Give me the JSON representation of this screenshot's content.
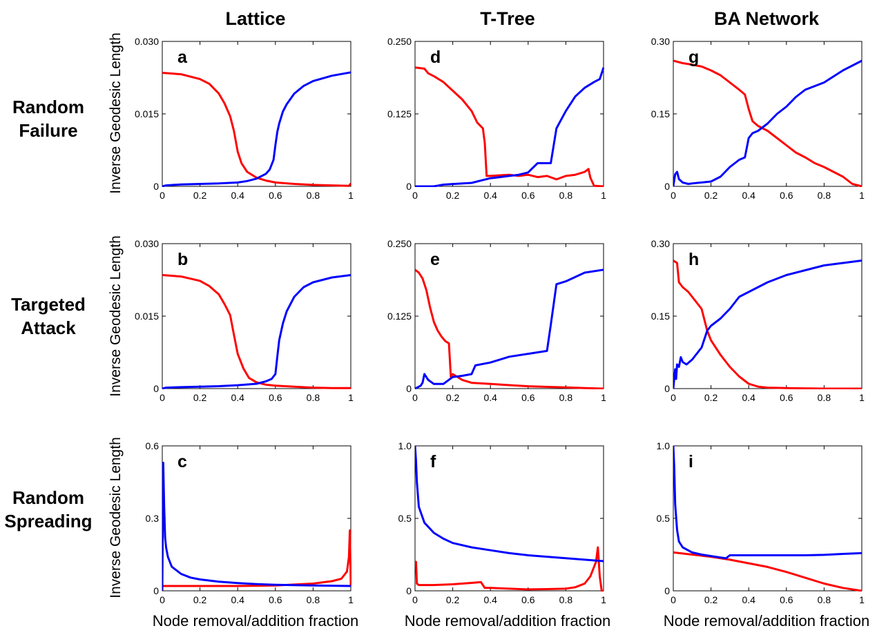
{
  "figure": {
    "column_titles": [
      "Lattice",
      "T-Tree",
      "BA Network"
    ],
    "row_titles": [
      [
        "Random",
        "Failure"
      ],
      [
        "Targeted",
        "Attack"
      ],
      [
        "Random",
        "Spreading"
      ]
    ],
    "ylabel": "Inverse Geodesic Length",
    "xlabel": "Node removal/addition fraction",
    "colors": {
      "removal": "#ff0000",
      "addition": "#0000ff",
      "axes": "#000000"
    }
  },
  "chart_data": [
    {
      "type": "line",
      "panel": "a",
      "row": 0,
      "col": 0,
      "xlim": [
        0,
        1
      ],
      "ylim": [
        0,
        0.03
      ],
      "xticks": [
        "0",
        "0.2",
        "0.4",
        "0.6",
        "0.8",
        "1"
      ],
      "yticks": [
        "0",
        "0.015",
        "0.030"
      ],
      "series": [
        {
          "color": "#ff0000",
          "x": [
            0,
            0.1,
            0.2,
            0.25,
            0.3,
            0.33,
            0.36,
            0.38,
            0.4,
            0.42,
            0.45,
            0.5,
            0.55,
            0.6,
            0.7,
            0.8,
            0.9,
            0.99,
            1
          ],
          "y": [
            0.0235,
            0.0232,
            0.0222,
            0.0212,
            0.0192,
            0.0172,
            0.0145,
            0.0115,
            0.0072,
            0.0048,
            0.003,
            0.0018,
            0.0012,
            0.0008,
            0.0005,
            0.0003,
            0.0002,
            0.0001,
            0.0006
          ]
        },
        {
          "color": "#0000ff",
          "x": [
            0,
            0.02,
            0.1,
            0.2,
            0.3,
            0.4,
            0.45,
            0.5,
            0.55,
            0.57,
            0.59,
            0.6,
            0.61,
            0.62,
            0.64,
            0.66,
            0.7,
            0.75,
            0.8,
            0.9,
            1
          ],
          "y": [
            0,
            0.0002,
            0.0004,
            0.0005,
            0.0006,
            0.0008,
            0.0011,
            0.0016,
            0.0026,
            0.0035,
            0.0055,
            0.0085,
            0.0112,
            0.013,
            0.0155,
            0.017,
            0.0192,
            0.0208,
            0.0218,
            0.0229,
            0.0236
          ]
        }
      ]
    },
    {
      "type": "line",
      "panel": "b",
      "row": 1,
      "col": 0,
      "xlim": [
        0,
        1
      ],
      "ylim": [
        0,
        0.03
      ],
      "xticks": [
        "0",
        "0.2",
        "0.4",
        "0.6",
        "0.8",
        "1"
      ],
      "yticks": [
        "0",
        "0.015",
        "0.030"
      ],
      "series": [
        {
          "color": "#ff0000",
          "x": [
            0,
            0.1,
            0.2,
            0.25,
            0.3,
            0.33,
            0.36,
            0.38,
            0.4,
            0.43,
            0.46,
            0.5,
            0.55,
            0.6,
            0.7,
            0.8,
            0.9,
            1
          ],
          "y": [
            0.0235,
            0.0232,
            0.0223,
            0.0212,
            0.0195,
            0.0175,
            0.0152,
            0.0112,
            0.0072,
            0.0042,
            0.0022,
            0.0013,
            0.0008,
            0.0006,
            0.0004,
            0.0002,
            0.0001,
            0.0001
          ]
        },
        {
          "color": "#0000ff",
          "x": [
            0,
            0.02,
            0.1,
            0.2,
            0.3,
            0.4,
            0.5,
            0.55,
            0.58,
            0.6,
            0.61,
            0.62,
            0.64,
            0.66,
            0.7,
            0.75,
            0.8,
            0.9,
            1
          ],
          "y": [
            0,
            0.0002,
            0.0003,
            0.0004,
            0.0005,
            0.0007,
            0.001,
            0.0015,
            0.002,
            0.003,
            0.0065,
            0.01,
            0.0135,
            0.016,
            0.019,
            0.021,
            0.022,
            0.023,
            0.0235
          ]
        }
      ]
    },
    {
      "type": "line",
      "panel": "c",
      "row": 2,
      "col": 0,
      "xlim": [
        0,
        1
      ],
      "ylim": [
        0,
        0.6
      ],
      "xticks": [
        "0",
        "0.2",
        "0.4",
        "0.6",
        "0.8",
        "1"
      ],
      "yticks": [
        "0",
        "0.3",
        "0.6"
      ],
      "series": [
        {
          "color": "#ff0000",
          "x": [
            0,
            0.1,
            0.2,
            0.4,
            0.6,
            0.8,
            0.9,
            0.95,
            0.98,
            0.99,
            0.995,
            1
          ],
          "y": [
            0.02,
            0.02,
            0.02,
            0.02,
            0.022,
            0.03,
            0.04,
            0.05,
            0.08,
            0.14,
            0.25,
            0.02
          ]
        },
        {
          "color": "#0000ff",
          "x": [
            0,
            0.005,
            0.01,
            0.015,
            0.02,
            0.03,
            0.05,
            0.1,
            0.15,
            0.2,
            0.3,
            0.4,
            0.5,
            0.6,
            0.8,
            1
          ],
          "y": [
            0,
            0.53,
            0.35,
            0.22,
            0.18,
            0.14,
            0.1,
            0.07,
            0.055,
            0.047,
            0.038,
            0.032,
            0.028,
            0.025,
            0.022,
            0.02
          ]
        }
      ]
    },
    {
      "type": "line",
      "panel": "d",
      "row": 0,
      "col": 1,
      "xlim": [
        0,
        1
      ],
      "ylim": [
        0,
        0.25
      ],
      "xticks": [
        "0",
        "0.2",
        "0.4",
        "0.6",
        "0.8",
        "1"
      ],
      "yticks": [
        "0",
        "0.125",
        "0.250"
      ],
      "series": [
        {
          "color": "#ff0000",
          "x": [
            0,
            0.05,
            0.07,
            0.1,
            0.15,
            0.2,
            0.25,
            0.3,
            0.33,
            0.36,
            0.37,
            0.38,
            0.4,
            0.45,
            0.5,
            0.55,
            0.6,
            0.65,
            0.7,
            0.75,
            0.8,
            0.85,
            0.9,
            0.92,
            0.93,
            0.95,
            1
          ],
          "y": [
            0.205,
            0.203,
            0.195,
            0.19,
            0.18,
            0.165,
            0.15,
            0.13,
            0.11,
            0.1,
            0.075,
            0.018,
            0.018,
            0.019,
            0.02,
            0.018,
            0.02,
            0.016,
            0.018,
            0.012,
            0.018,
            0.02,
            0.025,
            0.03,
            0.015,
            0.001,
            0.0
          ]
        },
        {
          "color": "#0000ff",
          "x": [
            0,
            0.1,
            0.15,
            0.2,
            0.3,
            0.35,
            0.4,
            0.45,
            0.5,
            0.55,
            0.6,
            0.65,
            0.7,
            0.72,
            0.75,
            0.8,
            0.85,
            0.9,
            0.95,
            0.98,
            1
          ],
          "y": [
            0,
            0.0,
            0.003,
            0.004,
            0.006,
            0.01,
            0.014,
            0.016,
            0.018,
            0.02,
            0.024,
            0.04,
            0.04,
            0.04,
            0.1,
            0.13,
            0.155,
            0.17,
            0.18,
            0.185,
            0.205
          ]
        }
      ]
    },
    {
      "type": "line",
      "panel": "e",
      "row": 1,
      "col": 1,
      "xlim": [
        0,
        1
      ],
      "ylim": [
        0,
        0.25
      ],
      "xticks": [
        "0",
        "0.2",
        "0.4",
        "0.6",
        "0.8",
        "1"
      ],
      "yticks": [
        "0",
        "0.125",
        "0.250"
      ],
      "series": [
        {
          "color": "#ff0000",
          "x": [
            0,
            0.02,
            0.04,
            0.06,
            0.08,
            0.1,
            0.12,
            0.14,
            0.16,
            0.18,
            0.19,
            0.2,
            0.25,
            0.3,
            0.4,
            0.5,
            0.6,
            0.7,
            0.8,
            0.9,
            1
          ],
          "y": [
            0.205,
            0.2,
            0.19,
            0.17,
            0.14,
            0.115,
            0.1,
            0.09,
            0.082,
            0.078,
            0.02,
            0.025,
            0.015,
            0.01,
            0.008,
            0.006,
            0.004,
            0.003,
            0.002,
            0.001,
            0.0
          ]
        },
        {
          "color": "#0000ff",
          "x": [
            0,
            0.03,
            0.04,
            0.05,
            0.07,
            0.1,
            0.15,
            0.2,
            0.25,
            0.3,
            0.32,
            0.4,
            0.5,
            0.6,
            0.7,
            0.72,
            0.75,
            0.8,
            0.9,
            1
          ],
          "y": [
            0,
            0.005,
            0.01,
            0.025,
            0.015,
            0.008,
            0.008,
            0.02,
            0.022,
            0.025,
            0.04,
            0.045,
            0.055,
            0.06,
            0.065,
            0.11,
            0.18,
            0.185,
            0.2,
            0.205
          ]
        }
      ]
    },
    {
      "type": "line",
      "panel": "f",
      "row": 2,
      "col": 1,
      "xlim": [
        0,
        1
      ],
      "ylim": [
        0,
        1.0
      ],
      "xticks": [
        "0",
        "0.2",
        "0.4",
        "0.6",
        "0.8",
        "1"
      ],
      "yticks": [
        "0",
        "0.5",
        "1.0"
      ],
      "series": [
        {
          "color": "#ff0000",
          "x": [
            0,
            0.005,
            0.01,
            0.02,
            0.1,
            0.2,
            0.3,
            0.35,
            0.37,
            0.4,
            0.5,
            0.6,
            0.7,
            0.8,
            0.85,
            0.9,
            0.93,
            0.96,
            0.97,
            0.98,
            0.99,
            1
          ],
          "y": [
            0.2,
            0.2,
            0.05,
            0.04,
            0.04,
            0.045,
            0.055,
            0.06,
            0.02,
            0.02,
            0.015,
            0.01,
            0.012,
            0.015,
            0.025,
            0.05,
            0.1,
            0.2,
            0.3,
            0.1,
            0.0,
            0.0
          ]
        },
        {
          "color": "#0000ff",
          "x": [
            0,
            0.005,
            0.01,
            0.02,
            0.05,
            0.1,
            0.15,
            0.2,
            0.3,
            0.4,
            0.5,
            0.6,
            0.7,
            0.8,
            0.9,
            1
          ],
          "y": [
            1.0,
            0.9,
            0.75,
            0.58,
            0.47,
            0.4,
            0.36,
            0.33,
            0.3,
            0.28,
            0.26,
            0.245,
            0.235,
            0.225,
            0.215,
            0.205
          ]
        }
      ]
    },
    {
      "type": "line",
      "panel": "g",
      "row": 0,
      "col": 2,
      "xlim": [
        0,
        1
      ],
      "ylim": [
        0,
        0.3
      ],
      "xticks": [
        "0",
        "0.2",
        "0.4",
        "0.6",
        "0.8",
        "1"
      ],
      "yticks": [
        "0",
        "0.15",
        "0.30"
      ],
      "series": [
        {
          "color": "#ff0000",
          "x": [
            0,
            0.05,
            0.1,
            0.15,
            0.2,
            0.25,
            0.3,
            0.35,
            0.38,
            0.4,
            0.42,
            0.45,
            0.5,
            0.55,
            0.6,
            0.65,
            0.7,
            0.75,
            0.8,
            0.85,
            0.9,
            0.95,
            1
          ],
          "y": [
            0.26,
            0.255,
            0.252,
            0.248,
            0.24,
            0.23,
            0.215,
            0.2,
            0.19,
            0.16,
            0.135,
            0.125,
            0.115,
            0.1,
            0.085,
            0.07,
            0.06,
            0.048,
            0.04,
            0.03,
            0.02,
            0.005,
            0.0
          ]
        },
        {
          "color": "#0000ff",
          "x": [
            0,
            0.01,
            0.02,
            0.03,
            0.05,
            0.08,
            0.1,
            0.2,
            0.25,
            0.3,
            0.35,
            0.38,
            0.4,
            0.42,
            0.45,
            0.5,
            0.55,
            0.6,
            0.65,
            0.7,
            0.8,
            0.9,
            1
          ],
          "y": [
            0,
            0.025,
            0.03,
            0.015,
            0.008,
            0.005,
            0.006,
            0.01,
            0.02,
            0.04,
            0.055,
            0.06,
            0.1,
            0.11,
            0.115,
            0.13,
            0.15,
            0.165,
            0.185,
            0.2,
            0.215,
            0.24,
            0.26
          ]
        }
      ]
    },
    {
      "type": "line",
      "panel": "h",
      "row": 1,
      "col": 2,
      "xlim": [
        0,
        1
      ],
      "ylim": [
        0,
        0.3
      ],
      "xticks": [
        "0",
        "0.2",
        "0.4",
        "0.6",
        "0.8",
        "1"
      ],
      "yticks": [
        "0",
        "0.15",
        "0.30"
      ],
      "series": [
        {
          "color": "#ff0000",
          "x": [
            0,
            0.02,
            0.03,
            0.05,
            0.08,
            0.1,
            0.12,
            0.15,
            0.18,
            0.2,
            0.25,
            0.3,
            0.35,
            0.4,
            0.45,
            0.5,
            0.6,
            0.8,
            1
          ],
          "y": [
            0.265,
            0.26,
            0.22,
            0.21,
            0.2,
            0.19,
            0.18,
            0.165,
            0.12,
            0.1,
            0.07,
            0.045,
            0.025,
            0.01,
            0.004,
            0.002,
            0.001,
            0.0,
            0.0
          ]
        },
        {
          "color": "#0000ff",
          "x": [
            0,
            0.01,
            0.015,
            0.02,
            0.03,
            0.04,
            0.05,
            0.07,
            0.1,
            0.15,
            0.18,
            0.2,
            0.25,
            0.3,
            0.35,
            0.4,
            0.5,
            0.6,
            0.7,
            0.8,
            0.9,
            1
          ],
          "y": [
            0,
            0.04,
            0.02,
            0.05,
            0.045,
            0.065,
            0.055,
            0.05,
            0.06,
            0.085,
            0.12,
            0.13,
            0.145,
            0.165,
            0.19,
            0.2,
            0.22,
            0.235,
            0.245,
            0.255,
            0.26,
            0.265
          ]
        }
      ]
    },
    {
      "type": "line",
      "panel": "i",
      "row": 2,
      "col": 2,
      "xlim": [
        0,
        1
      ],
      "ylim": [
        0,
        1.0
      ],
      "xticks": [
        "0",
        "0.2",
        "0.4",
        "0.6",
        "0.8",
        "1"
      ],
      "yticks": [
        "0",
        "0.5",
        "1.0"
      ],
      "series": [
        {
          "color": "#ff0000",
          "x": [
            0,
            0.1,
            0.2,
            0.3,
            0.4,
            0.5,
            0.6,
            0.7,
            0.8,
            0.9,
            1
          ],
          "y": [
            0.265,
            0.25,
            0.235,
            0.215,
            0.19,
            0.165,
            0.13,
            0.09,
            0.05,
            0.02,
            0.0
          ]
        },
        {
          "color": "#0000ff",
          "x": [
            0,
            0.005,
            0.01,
            0.02,
            0.03,
            0.05,
            0.1,
            0.15,
            0.2,
            0.25,
            0.28,
            0.3,
            0.4,
            0.5,
            0.6,
            0.7,
            0.8,
            0.9,
            1
          ],
          "y": [
            1.0,
            0.85,
            0.6,
            0.42,
            0.34,
            0.3,
            0.265,
            0.25,
            0.24,
            0.23,
            0.225,
            0.245,
            0.245,
            0.245,
            0.245,
            0.245,
            0.248,
            0.255,
            0.26
          ]
        }
      ]
    }
  ]
}
